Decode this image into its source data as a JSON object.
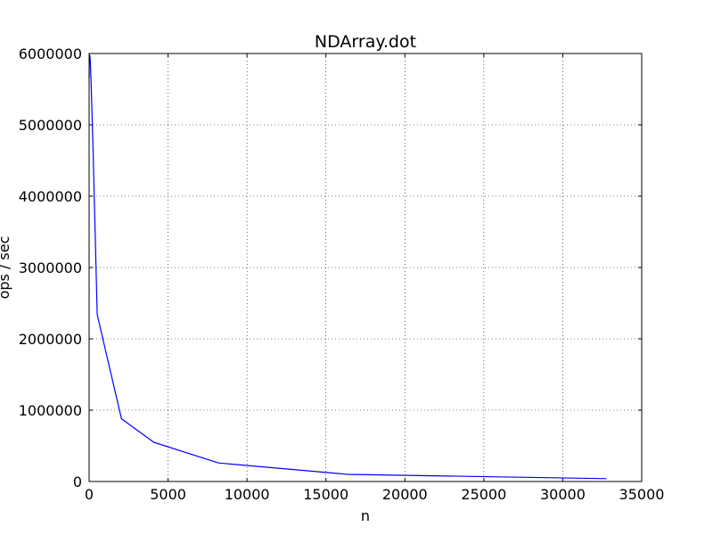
{
  "chart_data": {
    "type": "line",
    "title": "NDArray.dot",
    "xlabel": "n",
    "ylabel": "ops / sec",
    "xlim": [
      0,
      35000
    ],
    "ylim": [
      0,
      6000000
    ],
    "xticks": [
      0,
      5000,
      10000,
      15000,
      20000,
      25000,
      30000,
      35000
    ],
    "yticks": [
      0,
      1000000,
      2000000,
      3000000,
      4000000,
      5000000,
      6000000
    ],
    "xtick_labels": [
      "0",
      "5000",
      "10000",
      "15000",
      "20000",
      "25000",
      "30000",
      "35000"
    ],
    "ytick_labels": [
      "0",
      "1000000",
      "2000000",
      "3000000",
      "4000000",
      "5000000",
      "6000000"
    ],
    "grid": true,
    "series": [
      {
        "color": "#0000ff",
        "x": [
          0,
          8,
          16,
          32,
          64,
          128,
          256,
          512,
          2048,
          4096,
          8192,
          16384,
          32768
        ],
        "y": [
          5650000,
          5900000,
          5950000,
          5980000,
          5940000,
          5580000,
          4600000,
          2340000,
          880000,
          550000,
          260000,
          100000,
          40000
        ]
      }
    ]
  }
}
